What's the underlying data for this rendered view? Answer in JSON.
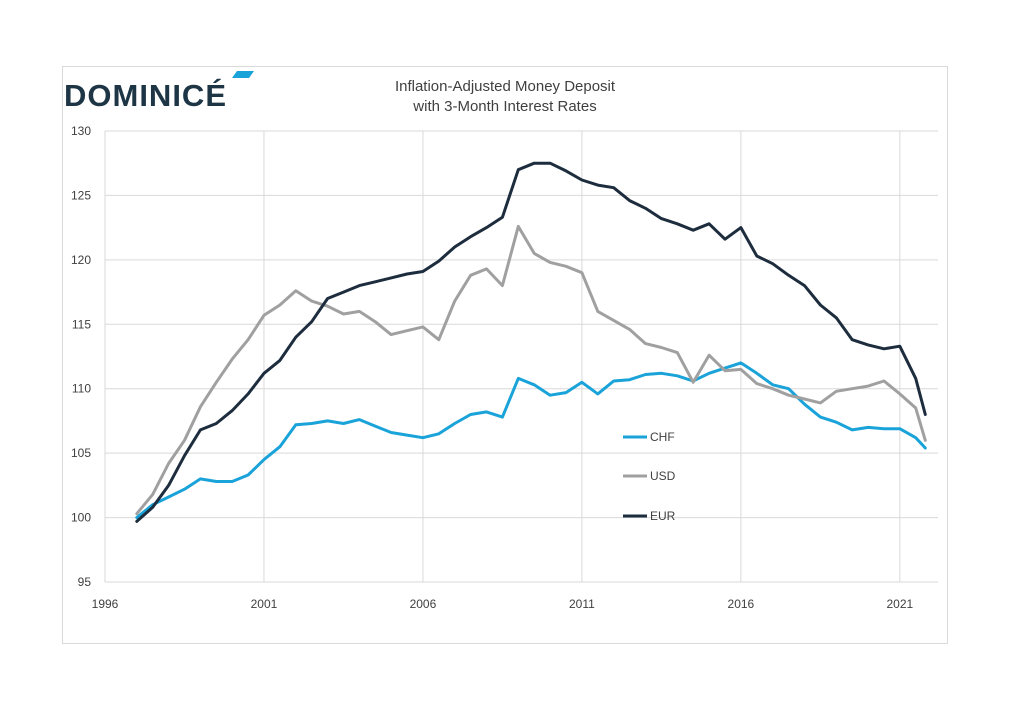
{
  "brand": {
    "name": "DOMINICÉ",
    "accent_color": "#1aa3d9",
    "text_color": "#1d3545"
  },
  "chart_data": {
    "type": "line",
    "title_line1": "Inflation-Adjusted Money Deposit",
    "title_line2": "with 3-Month Interest Rates",
    "xlim": [
      1996,
      2022.2
    ],
    "ylim": [
      95,
      130
    ],
    "x_ticks": [
      1996,
      2001,
      2006,
      2011,
      2016,
      2021
    ],
    "y_ticks": [
      95,
      100,
      105,
      110,
      115,
      120,
      125,
      130
    ],
    "grid": true,
    "legend_position": "inside-right",
    "series": [
      {
        "name": "CHF",
        "color": "#1aa3d9",
        "x": [
          1997.0,
          1997.5,
          1998.0,
          1998.5,
          1999.0,
          1999.5,
          2000.0,
          2000.5,
          2001.0,
          2001.5,
          2002.0,
          2002.5,
          2003.0,
          2003.5,
          2004.0,
          2004.5,
          2005.0,
          2005.5,
          2006.0,
          2006.5,
          2007.0,
          2007.5,
          2008.0,
          2008.5,
          2009.0,
          2009.5,
          2010.0,
          2010.5,
          2011.0,
          2011.5,
          2012.0,
          2012.5,
          2013.0,
          2013.5,
          2014.0,
          2014.5,
          2015.0,
          2015.5,
          2016.0,
          2016.5,
          2017.0,
          2017.5,
          2018.0,
          2018.5,
          2019.0,
          2019.5,
          2020.0,
          2020.5,
          2021.0,
          2021.5,
          2021.8
        ],
        "values": [
          100.0,
          101.0,
          101.6,
          102.2,
          103.0,
          102.8,
          102.8,
          103.3,
          104.5,
          105.5,
          107.2,
          107.3,
          107.5,
          107.3,
          107.6,
          107.1,
          106.6,
          106.4,
          106.2,
          106.5,
          107.3,
          108.0,
          108.2,
          107.8,
          110.8,
          110.3,
          109.5,
          109.7,
          110.5,
          109.6,
          110.6,
          110.7,
          111.1,
          111.2,
          111.0,
          110.6,
          111.2,
          111.6,
          112.0,
          111.2,
          110.3,
          110.0,
          108.8,
          107.8,
          107.4,
          106.8,
          107.0,
          106.9,
          106.9,
          106.2,
          105.4
        ]
      },
      {
        "name": "USD",
        "color": "#a0a0a0",
        "x": [
          1997.0,
          1997.5,
          1998.0,
          1998.5,
          1999.0,
          1999.5,
          2000.0,
          2000.5,
          2001.0,
          2001.5,
          2002.0,
          2002.5,
          2003.0,
          2003.5,
          2004.0,
          2004.5,
          2005.0,
          2005.5,
          2006.0,
          2006.5,
          2007.0,
          2007.5,
          2008.0,
          2008.5,
          2009.0,
          2009.5,
          2010.0,
          2010.5,
          2011.0,
          2011.5,
          2012.0,
          2012.5,
          2013.0,
          2013.5,
          2014.0,
          2014.5,
          2015.0,
          2015.5,
          2016.0,
          2016.5,
          2017.0,
          2017.5,
          2018.0,
          2018.5,
          2019.0,
          2019.5,
          2020.0,
          2020.5,
          2021.0,
          2021.5,
          2021.8
        ],
        "values": [
          100.3,
          101.8,
          104.2,
          106.0,
          108.6,
          110.5,
          112.3,
          113.8,
          115.7,
          116.5,
          117.6,
          116.8,
          116.4,
          115.8,
          116.0,
          115.2,
          114.2,
          114.5,
          114.8,
          113.8,
          116.8,
          118.8,
          119.3,
          118.0,
          122.6,
          120.5,
          119.8,
          119.5,
          119.0,
          116.0,
          115.3,
          114.6,
          113.5,
          113.2,
          112.8,
          110.5,
          112.6,
          111.4,
          111.5,
          110.4,
          110.0,
          109.5,
          109.2,
          108.9,
          109.8,
          110.0,
          110.2,
          110.6,
          109.6,
          108.5,
          106.0
        ]
      },
      {
        "name": "EUR",
        "color": "#1d2d3e",
        "x": [
          1997.0,
          1997.5,
          1998.0,
          1998.5,
          1999.0,
          1999.5,
          2000.0,
          2000.5,
          2001.0,
          2001.5,
          2002.0,
          2002.5,
          2003.0,
          2003.5,
          2004.0,
          2004.5,
          2005.0,
          2005.5,
          2006.0,
          2006.5,
          2007.0,
          2007.5,
          2008.0,
          2008.5,
          2009.0,
          2009.5,
          2010.0,
          2010.5,
          2011.0,
          2011.5,
          2012.0,
          2012.5,
          2013.0,
          2013.5,
          2014.0,
          2014.5,
          2015.0,
          2015.5,
          2016.0,
          2016.5,
          2017.0,
          2017.5,
          2018.0,
          2018.5,
          2019.0,
          2019.5,
          2020.0,
          2020.5,
          2021.0,
          2021.5,
          2021.8
        ],
        "values": [
          99.7,
          100.8,
          102.5,
          104.8,
          106.8,
          107.3,
          108.3,
          109.6,
          111.2,
          112.2,
          114.0,
          115.2,
          117.0,
          117.5,
          118.0,
          118.3,
          118.6,
          118.9,
          119.1,
          119.9,
          121.0,
          121.8,
          122.5,
          123.3,
          127.0,
          127.5,
          127.5,
          126.9,
          126.2,
          125.8,
          125.6,
          124.6,
          124.0,
          123.2,
          122.8,
          122.3,
          122.8,
          121.6,
          122.5,
          120.3,
          119.7,
          118.8,
          118.0,
          116.5,
          115.5,
          113.8,
          113.4,
          113.1,
          113.3,
          110.8,
          108.0
        ]
      }
    ]
  }
}
